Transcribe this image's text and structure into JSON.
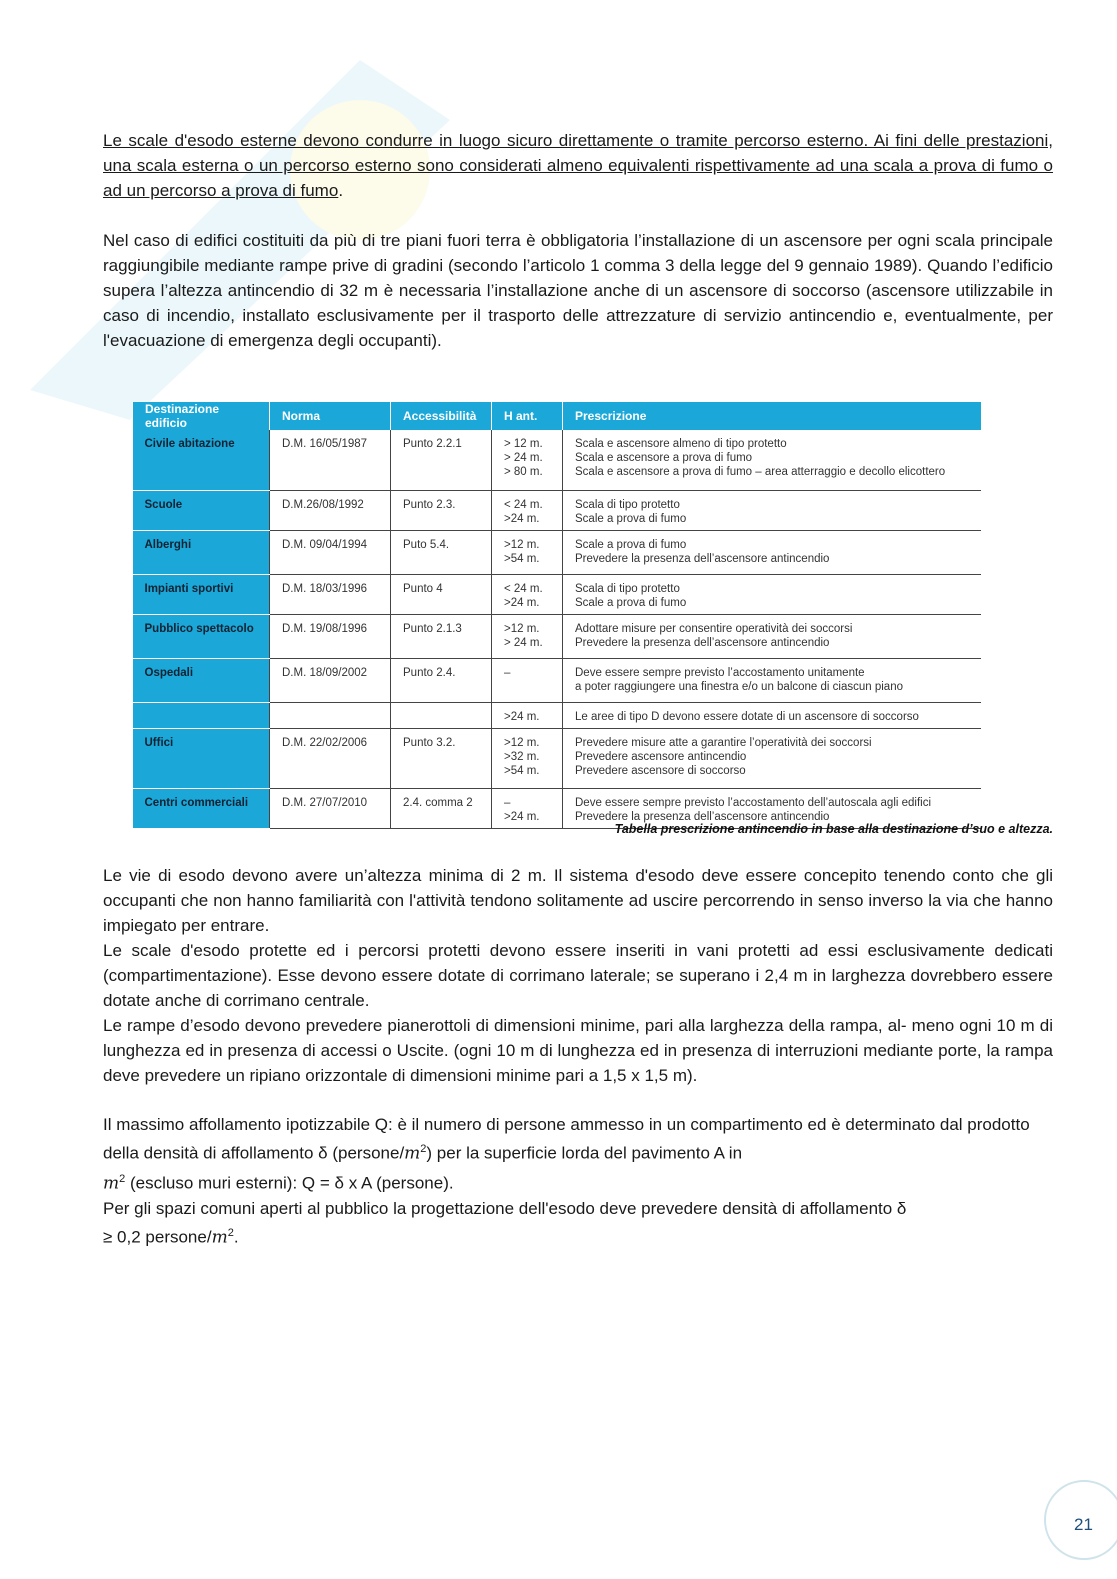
{
  "paragraph1": {
    "underlined": "Le scale d'esodo esterne devono condurre in luogo sicuro direttamente o tramite percorso esterno. Ai fini delle prestazioni, una scala esterna o un percorso esterno sono considerati almeno equivalenti rispettivamente ad una scala a prova di fumo o ad un percorso a prova di fumo",
    "tail": "."
  },
  "paragraph2": "Nel caso di edifici costituiti da più di tre piani fuori terra è obbligatoria l’installazione di un ascensore per ogni scala principale raggiungibile mediante rampe prive di gradini (secondo l’articolo 1 comma 3 della legge del 9 gennaio 1989). Quando l’edificio supera l’altezza antincendio di 32 m è necessaria l’installazione anche di un ascensore di soccorso (ascensore utilizzabile in caso di incendio, installato esclusivamente per il trasporto delle attrezzature di servizio antincendio e, eventualmente, per l'evacuazione di emergenza degli occupanti).",
  "table": {
    "headers": [
      "Destinazione edificio",
      "Norma",
      "Accessibilità",
      "H ant.",
      "Prescrizione"
    ],
    "header_color": "#1ba8d8",
    "rows": [
      {
        "dest": "Civile abitazione",
        "norma": "D.M. 16/05/1987",
        "acc": "Punto 2.2.1",
        "h": [
          "> 12 m.",
          "> 24 m.",
          "> 80 m."
        ],
        "presc": [
          "Scala e ascensore almeno di tipo protetto",
          "Scala e ascensore a prova di fumo",
          "Scala e ascensore a prova di fumo – area atterraggio e decollo elicottero"
        ]
      },
      {
        "dest": "Scuole",
        "norma": "D.M.26/08/1992",
        "acc": "Punto 2.3.",
        "h": [
          "< 24 m.",
          ">24 m."
        ],
        "presc": [
          "Scala di tipo protetto",
          "Scale a prova di fumo"
        ]
      },
      {
        "dest": "Alberghi",
        "norma": "D.M. 09/04/1994",
        "acc": "Puto 5.4.",
        "h": [
          ">12 m.",
          ">54 m."
        ],
        "presc": [
          "Scale a prova di fumo",
          "Prevedere la presenza dell’ascensore antincendio"
        ]
      },
      {
        "dest": "Impianti sportivi",
        "norma": "D.M. 18/03/1996",
        "acc": "Punto 4",
        "h": [
          "< 24 m.",
          ">24 m."
        ],
        "presc": [
          "Scala di tipo protetto",
          "Scale a prova di fumo"
        ]
      },
      {
        "dest": "Pubblico spettacolo",
        "norma": "D.M. 19/08/1996",
        "acc": "Punto 2.1.3",
        "h": [
          ">12 m.",
          "> 24 m."
        ],
        "presc": [
          "Adottare misure per consentire operatività dei soccorsi",
          "Prevedere la presenza dell’ascensore antincendio"
        ]
      },
      {
        "dest": "Ospedali",
        "norma": "D.M. 18/09/2002",
        "acc": "Punto 2.4.",
        "h": [
          "–"
        ],
        "presc": [
          "Deve essere sempre previsto l’accostamento unitamente",
          "a poter raggiungere una finestra e/o un balcone di ciascun piano"
        ]
      },
      {
        "dest": "",
        "norma": "",
        "acc": "",
        "h": [
          ">24 m."
        ],
        "presc": [
          "Le aree di tipo D devono essere dotate di un ascensore di soccorso"
        ]
      },
      {
        "dest": "Uffici",
        "norma": "D.M. 22/02/2006",
        "acc": "Punto 3.2.",
        "h": [
          ">12 m.",
          ">32 m.",
          ">54 m."
        ],
        "presc": [
          "Prevedere misure atte a garantire l’operatività dei soccorsi",
          "Prevedere ascensore antincendio",
          "Prevedere ascensore di soccorso"
        ]
      },
      {
        "dest": "Centri commerciali",
        "norma": "D.M. 27/07/2010",
        "acc": "2.4. comma 2",
        "h": [
          "–",
          ">24 m."
        ],
        "presc": [
          "Deve essere sempre previsto l’accostamento dell’autoscala agli edifici",
          "Prevedere la presenza dell’ascensore antincendio"
        ]
      }
    ],
    "caption": "Tabella prescrizione antincendio in base alla destinazione d’suo e altezza."
  },
  "paragraph3": [
    "Le vie di esodo devono avere un’altezza minima di 2 m. Il sistema d'esodo deve essere concepito tenendo conto che gli occupanti che non hanno familiarità con l'attività tendono solitamente ad uscire percorrendo in senso inverso la via che hanno impiegato per entrare.",
    "Le scale d'esodo protette ed i percorsi protetti devono essere inseriti in vani protetti ad essi esclusivamente dedicati (compartimentazione). Esse devono essere dotate di corrimano laterale; se superano i 2,4 m in larghezza dovrebbero essere dotate anche di corrimano centrale.",
    "Le rampe d’esodo devono prevedere pianerottoli di dimensioni minime, pari alla larghezza della rampa, al- meno ogni 10 m di lunghezza ed in presenza di accessi o Uscite. (ogni 10 m di lunghezza ed in presenza di interruzioni mediante porte, la rampa deve prevedere un ripiano orizzontale di dimensioni minime pari a 1,5 x 1,5 m)."
  ],
  "paragraph4": {
    "a": "Il massimo affollamento ipotizzabile Q: è il numero di persone ammesso in un compartimento ed è determinato dal prodotto della densità di affollamento δ (persone/",
    "b": ") per la superficie lorda del pavimento A in",
    "c": " (escluso muri esterni): Q = δ x A (persone).",
    "d": "Per gli spazi comuni aperti al pubblico la progettazione dell'esodo deve prevedere densità di affollamento δ",
    "e": "≥ 0,2 persone/",
    "f": ".",
    "m": "m",
    "exp": "2"
  },
  "page_number": "21"
}
